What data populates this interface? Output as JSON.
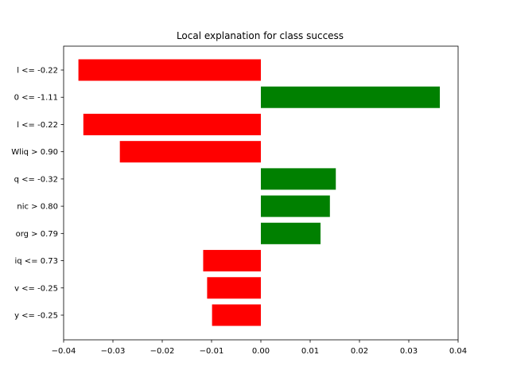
{
  "chart_data": {
    "type": "bar",
    "orientation": "horizontal",
    "title": "Local explanation for class success",
    "xlabel": "",
    "ylabel": "",
    "xlim": [
      -0.04,
      0.04
    ],
    "x_ticks": [
      -0.04,
      -0.03,
      -0.02,
      -0.01,
      0.0,
      0.01,
      0.02,
      0.03,
      0.04
    ],
    "x_tick_labels": [
      "−0.04",
      "−0.03",
      "−0.02",
      "−0.01",
      "0.00",
      "0.01",
      "0.02",
      "0.03",
      "0.04"
    ],
    "grid": false,
    "categories": [
      "l <= -0.22",
      "0 <= -1.11",
      "l <= -0.22",
      "Wliq > 0.90",
      "q <= -0.32",
      "nic > 0.80",
      "org > 0.79",
      "iq <= 0.73",
      "v <= -0.25",
      "y <= -0.25"
    ],
    "values": [
      -0.037,
      0.0363,
      -0.036,
      -0.0286,
      0.0152,
      0.014,
      0.0121,
      -0.0117,
      -0.0109,
      -0.0099
    ],
    "colors": {
      "positive": "#008000",
      "negative": "#ff0000"
    }
  }
}
